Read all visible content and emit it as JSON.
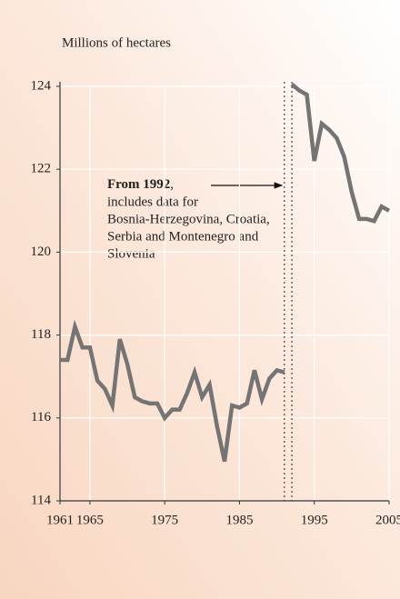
{
  "chart_data": {
    "type": "line",
    "y_label": "Millions of hectares",
    "xlim": [
      1961,
      2005
    ],
    "xticks": [
      1961,
      1965,
      1975,
      1985,
      1995,
      2005
    ],
    "ylim": [
      114,
      124
    ],
    "yticks": [
      114,
      116,
      118,
      120,
      122,
      124
    ],
    "grid": true,
    "series": [
      {
        "color": "#747474",
        "x": [
          1961,
          1962,
          1963,
          1964,
          1965,
          1966,
          1967,
          1968,
          1969,
          1970,
          1971,
          1972,
          1973,
          1974,
          1975,
          1976,
          1977,
          1978,
          1979,
          1980,
          1981,
          1982,
          1983,
          1984,
          1985,
          1986,
          1987,
          1988,
          1989,
          1990,
          1991
        ],
        "values": [
          117.4,
          117.4,
          118.2,
          117.7,
          117.7,
          116.9,
          116.7,
          116.3,
          117.9,
          117.3,
          116.5,
          116.4,
          116.35,
          116.35,
          116.0,
          116.2,
          116.2,
          116.6,
          117.1,
          116.5,
          116.8,
          115.8,
          114.95,
          116.3,
          116.25,
          116.35,
          117.15,
          116.45,
          116.95,
          117.15,
          117.1
        ]
      },
      {
        "color": "#747474",
        "x": [
          1992,
          1993,
          1994,
          1995,
          1996,
          1997,
          1998,
          1999,
          2000,
          2001,
          2002,
          2003,
          2004,
          2005
        ],
        "values": [
          124.05,
          123.9,
          123.8,
          122.2,
          123.1,
          122.95,
          122.75,
          122.3,
          121.45,
          120.8,
          120.8,
          120.75,
          121.1,
          121.0
        ]
      }
    ],
    "annotation": {
      "lead": "From 1992",
      "lead_rest": ",",
      "lines": [
        "includes data for",
        "Bosnia-Herzegovina, Croatia,",
        "Serbia and Montenegro and",
        "Slovenia"
      ]
    }
  }
}
